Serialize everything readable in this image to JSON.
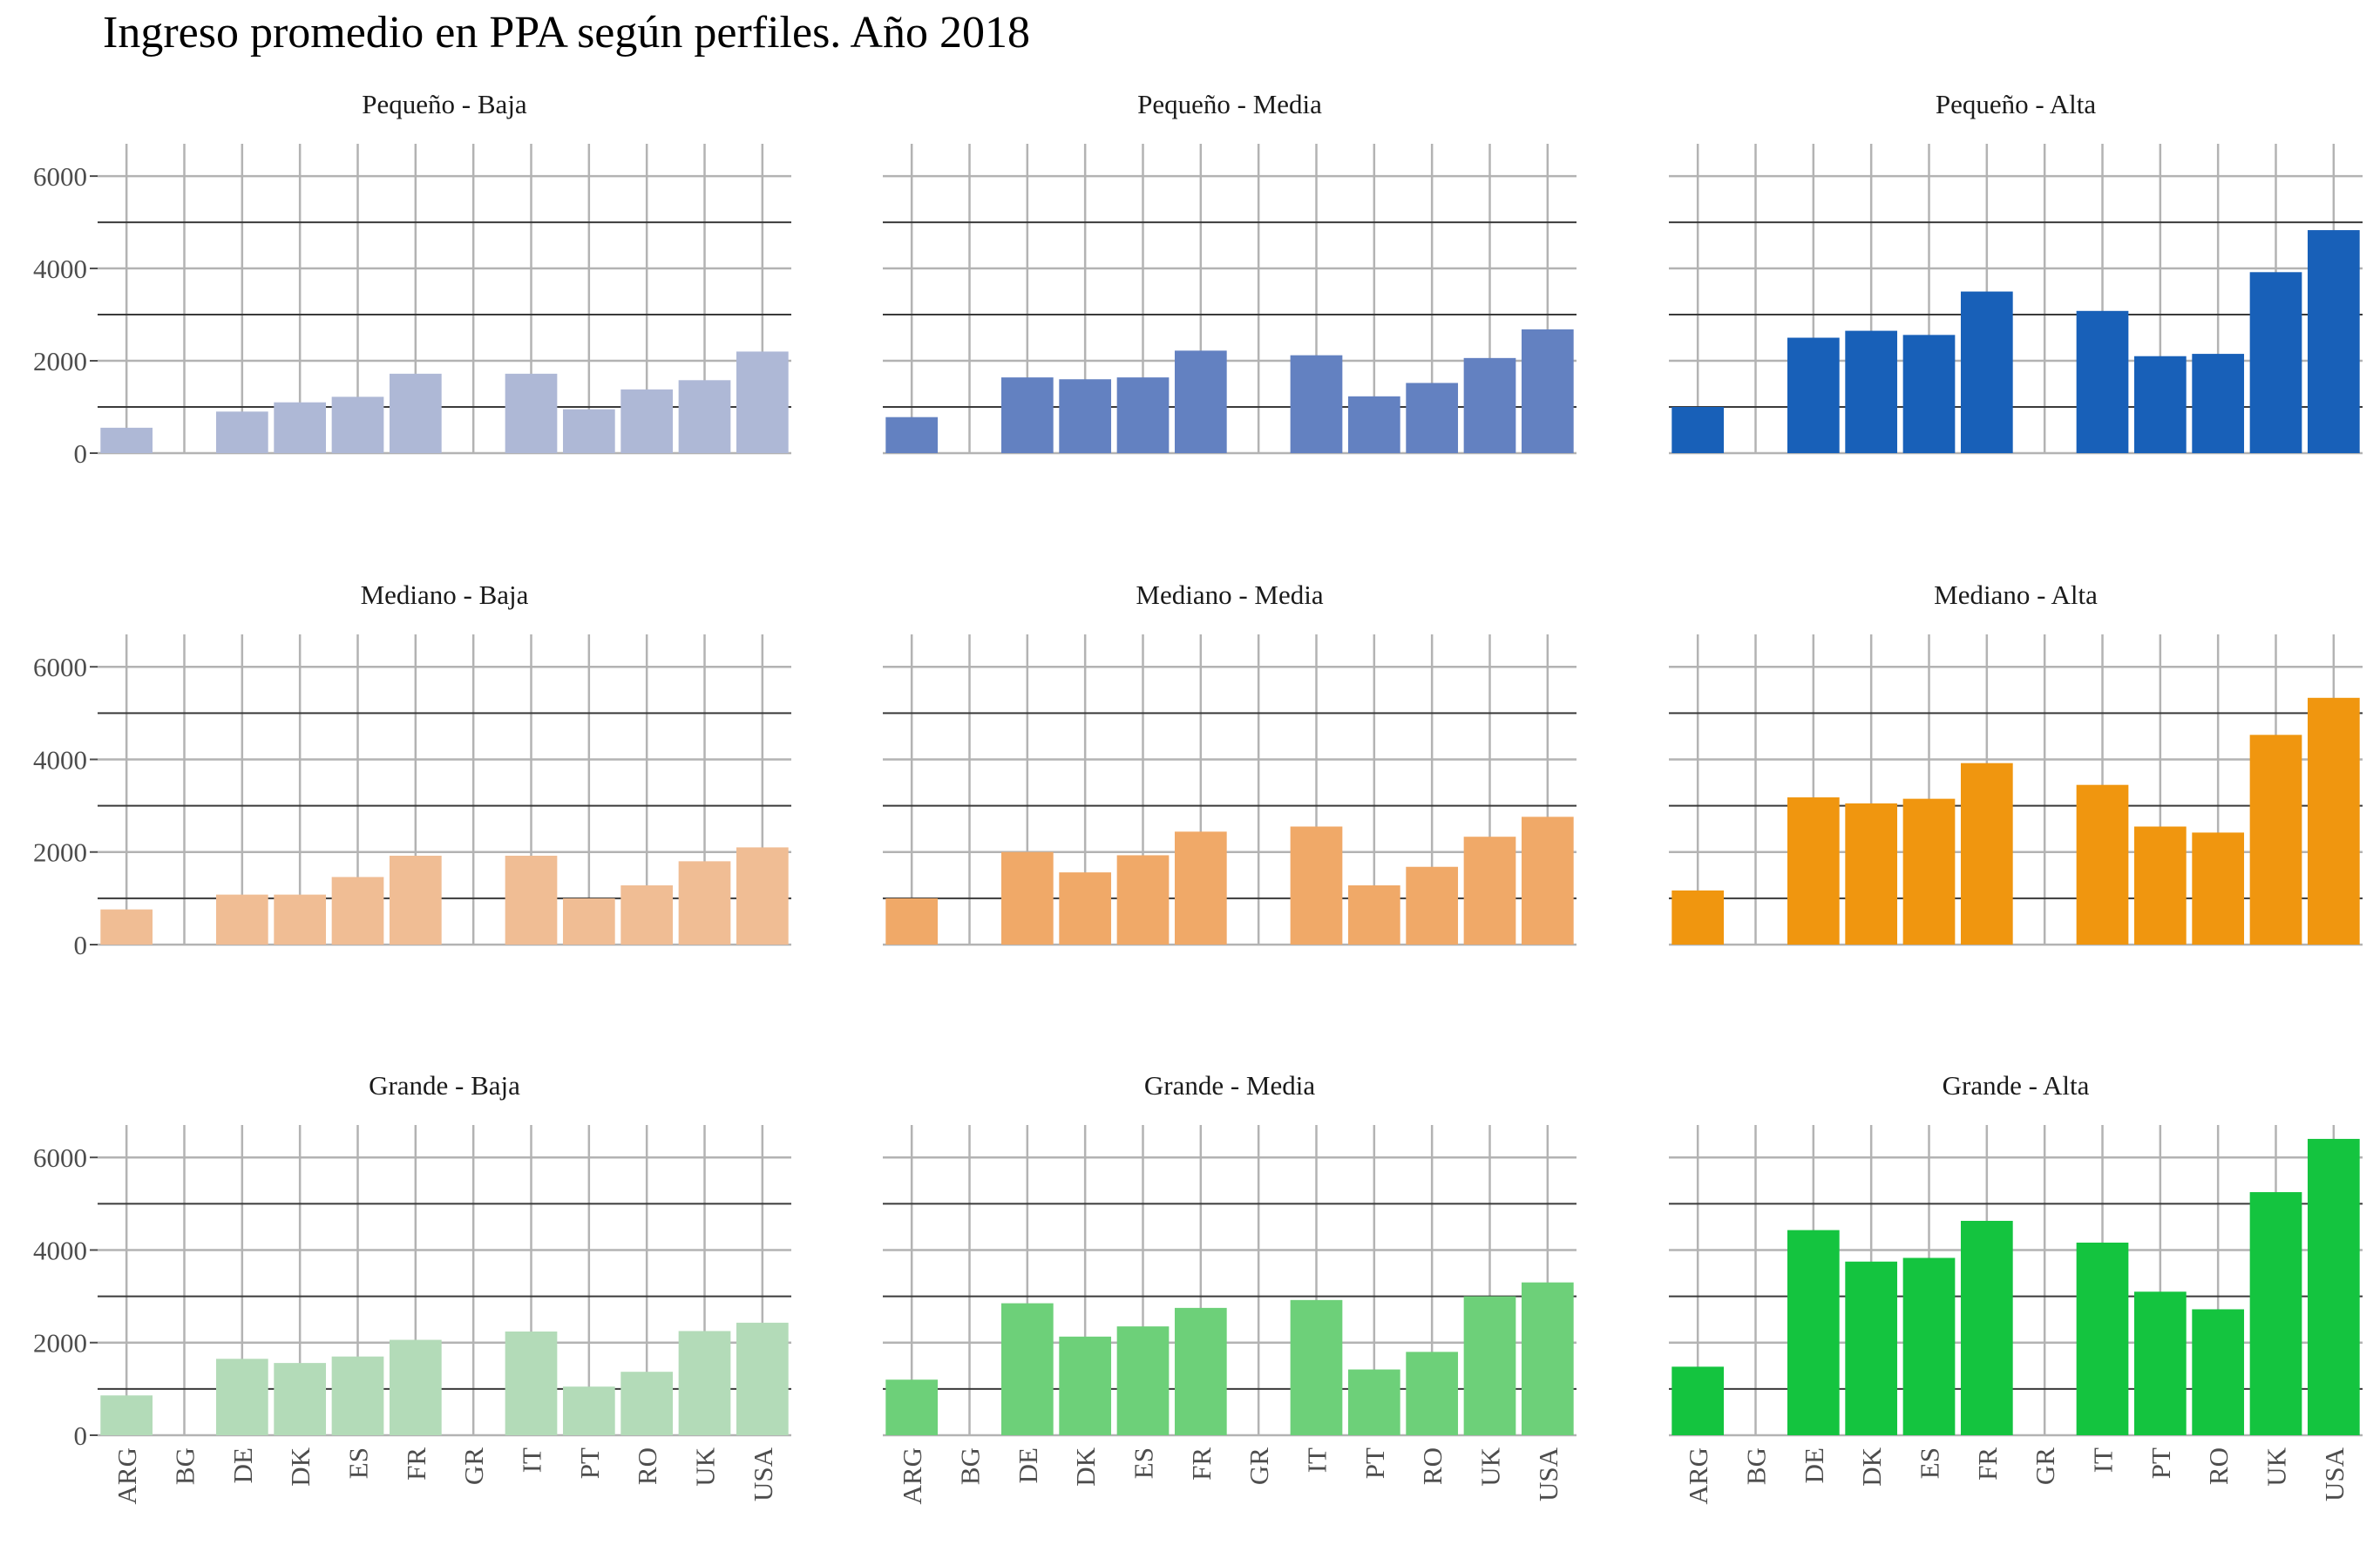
{
  "chart_data": {
    "type": "bar",
    "title": "Ingreso promedio en PPA según perfiles. Año 2018",
    "xlabel": "",
    "ylabel": "",
    "ylim": [
      0,
      6700
    ],
    "y_ticks": [
      0,
      2000,
      4000,
      6000
    ],
    "grid": true,
    "legend": "none",
    "categories": [
      "ARG",
      "BG",
      "DE",
      "DK",
      "ES",
      "FR",
      "GR",
      "IT",
      "PT",
      "RO",
      "UK",
      "USA"
    ],
    "panels": [
      {
        "label": "Pequeño - Baja",
        "color": "#aeb8d6",
        "values": [
          550,
          null,
          900,
          1100,
          1220,
          1720,
          null,
          1720,
          950,
          1380,
          1580,
          2200
        ]
      },
      {
        "label": "Pequeño - Media",
        "color": "#6381c1",
        "values": [
          780,
          null,
          1640,
          1600,
          1640,
          2220,
          null,
          2120,
          1230,
          1520,
          2060,
          2680
        ]
      },
      {
        "label": "Pequeño - Alta",
        "color": "#1860b8",
        "values": [
          1000,
          null,
          2500,
          2650,
          2560,
          3500,
          null,
          3080,
          2100,
          2150,
          3920,
          4830
        ]
      },
      {
        "label": "Mediano - Baja",
        "color": "#f0bd94",
        "values": [
          760,
          null,
          1080,
          1080,
          1460,
          1920,
          null,
          1920,
          1000,
          1280,
          1800,
          2100
        ]
      },
      {
        "label": "Mediano - Media",
        "color": "#f0a968",
        "values": [
          1000,
          null,
          2000,
          1560,
          1930,
          2440,
          null,
          2550,
          1280,
          1680,
          2330,
          2760
        ]
      },
      {
        "label": "Mediano - Alta",
        "color": "#f0960f",
        "values": [
          1170,
          null,
          3180,
          3050,
          3150,
          3920,
          null,
          3450,
          2550,
          2420,
          4530,
          5330
        ]
      },
      {
        "label": "Grande - Baja",
        "color": "#b3dbb8",
        "values": [
          860,
          null,
          1650,
          1560,
          1700,
          2060,
          null,
          2240,
          1050,
          1370,
          2250,
          2430
        ]
      },
      {
        "label": "Grande - Media",
        "color": "#6dd079",
        "values": [
          1200,
          null,
          2850,
          2130,
          2350,
          2750,
          null,
          2920,
          1420,
          1800,
          3000,
          3300
        ]
      },
      {
        "label": "Grande - Alta",
        "color": "#14c43f",
        "values": [
          1480,
          null,
          4430,
          3750,
          3830,
          4630,
          null,
          4160,
          3100,
          2720,
          5250,
          6400
        ]
      }
    ]
  }
}
